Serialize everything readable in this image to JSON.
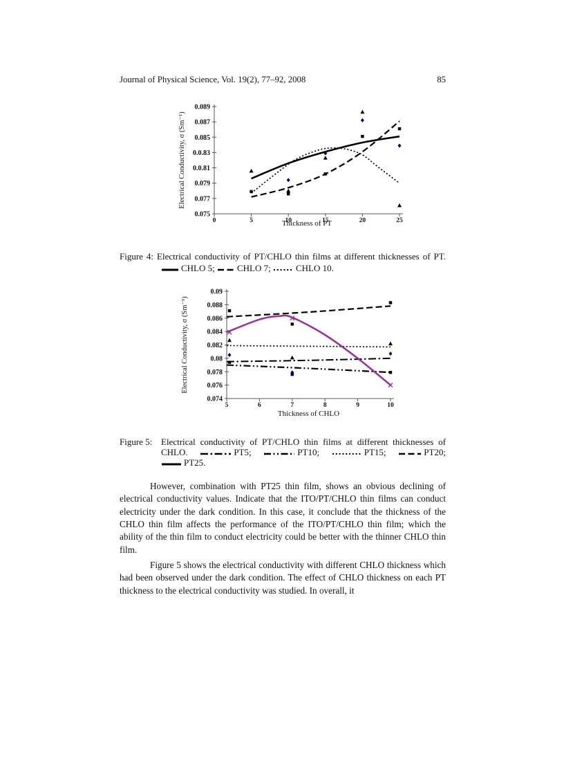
{
  "page": {
    "header": {
      "journal": "Journal of Physical Science, Vol. 19(2), 77–92, 2008",
      "page_number": "85"
    },
    "paragraphs": [
      "However, combination with PT25 thin film, shows an obvious declining of electrical conductivity values. Indicate that the ITO/PT/CHLO thin films can conduct electricity under the dark condition. In this case, it conclude that the thickness of the CHLO thin film affects the performance of the ITO/PT/CHLO thin film; which the ability of the thin film to conduct electricity could be better with the thinner CHLO thin film.",
      "Figure 5 shows the electrical conductivity with different CHLO thickness which had been observed under the dark condition. The effect of CHLO thickness on each PT thickness to the electrical conductivity was studied. In overall, it"
    ]
  },
  "figure4": {
    "label": "Figure 4:",
    "line1": "Electrical conductivity of PT/CHLO thin films at different thicknesses of PT.",
    "legend": [
      {
        "style": "solid",
        "text": "CHLO 5;"
      },
      {
        "style": "dash",
        "text": "CHLO 7;"
      },
      {
        "style": "dot",
        "text": "CHLO 10."
      }
    ]
  },
  "figure5": {
    "label": "Figure 5:",
    "line1": "Electrical conductivity of PT/CHLO thin films at different thicknesses of",
    "pre": "CHLO.",
    "legend": [
      {
        "style": "dashdot",
        "text": "PT5;"
      },
      {
        "style": "dashdotdot",
        "text": "PT10;"
      },
      {
        "style": "dot",
        "text": "PT15;"
      },
      {
        "style": "dash",
        "text": "PT20;"
      },
      {
        "style": "solid",
        "text": "PT25."
      }
    ]
  },
  "colors": {
    "line_black": "#000000",
    "marker_navy": "#000080",
    "pt25_purple": "#993399"
  },
  "chart_data": [
    {
      "type": "line",
      "title": "",
      "xlabel": "Thickness of PT",
      "ylabel": "Electrical Conductivity, σ (Sm⁻¹)",
      "xlim": [
        0,
        25
      ],
      "xticks": [
        "0",
        "5",
        "10",
        "15",
        "20",
        "25"
      ],
      "ylim": [
        0.075,
        0.089
      ],
      "ytick_labels": [
        "0.075",
        "0.077",
        "0.079",
        "0.0.81",
        "0.0.83",
        "0.085",
        "0.087",
        "0.089"
      ],
      "grid": false,
      "fitted_lines": [
        {
          "name": "CHLO 5",
          "style": "solid",
          "color": "#000000",
          "points": [
            [
              5,
              0.0796
            ],
            [
              10,
              0.0816
            ],
            [
              15,
              0.0831
            ],
            [
              20,
              0.0843
            ],
            [
              25,
              0.0851
            ]
          ]
        },
        {
          "name": "CHLO 7",
          "style": "dash",
          "color": "#000000",
          "points": [
            [
              5,
              0.0772
            ],
            [
              10,
              0.0784
            ],
            [
              15,
              0.0802
            ],
            [
              20,
              0.0831
            ],
            [
              25,
              0.0871
            ]
          ]
        },
        {
          "name": "CHLO 10",
          "style": "dot",
          "color": "#000000",
          "points": [
            [
              5,
              0.0777
            ],
            [
              8,
              0.08
            ],
            [
              11,
              0.0821
            ],
            [
              14,
              0.0833
            ],
            [
              16,
              0.0836
            ],
            [
              18,
              0.0834
            ],
            [
              20,
              0.0827
            ],
            [
              22,
              0.0812
            ],
            [
              25,
              0.079
            ]
          ]
        }
      ],
      "markers": [
        {
          "name": "CHLO 5 data",
          "shape": "square",
          "color": "#000000",
          "points": [
            [
              5,
              0.0779
            ],
            [
              10,
              0.0776
            ],
            [
              15,
              0.0802
            ],
            [
              20,
              0.0851
            ],
            [
              25,
              0.0861
            ]
          ]
        },
        {
          "name": "CHLO 7 data",
          "shape": "triangle",
          "color": "#000000",
          "points": [
            [
              5,
              0.0806
            ],
            [
              10,
              0.078
            ],
            [
              15,
              0.0823
            ],
            [
              20,
              0.0883
            ],
            [
              25,
              0.0761
            ]
          ]
        },
        {
          "name": "CHLO 10 data",
          "shape": "diamond",
          "color": "#000080",
          "points": [
            [
              10,
              0.0794
            ],
            [
              15,
              0.0829
            ],
            [
              20,
              0.0872
            ],
            [
              25,
              0.0839
            ]
          ]
        }
      ]
    },
    {
      "type": "line",
      "title": "",
      "xlabel": "Thickness of CHLO",
      "ylabel": "Electrical Conductivity, σ (Sm⁻¹)",
      "xlim": [
        5,
        10
      ],
      "xticks": [
        "5",
        "6",
        "7",
        "8",
        "9",
        "10"
      ],
      "ylim": [
        0.074,
        0.09
      ],
      "ytick_labels": [
        "0.074",
        "0.076",
        "0.078",
        "0.08",
        "0.082",
        "0.084",
        "0.086",
        "0.088",
        "0.09"
      ],
      "grid": false,
      "fitted_lines": [
        {
          "name": "PT5",
          "style": "dashdot",
          "color": "#000000",
          "points": [
            [
              5,
              0.0795
            ],
            [
              7.5,
              0.0797
            ],
            [
              10,
              0.08
            ]
          ]
        },
        {
          "name": "PT10",
          "style": "dashdotdot",
          "color": "#000000",
          "points": [
            [
              5,
              0.079
            ],
            [
              7.5,
              0.0785
            ],
            [
              10,
              0.0779
            ]
          ]
        },
        {
          "name": "PT15",
          "style": "dot",
          "color": "#000000",
          "points": [
            [
              5,
              0.0819
            ],
            [
              7.5,
              0.0818
            ],
            [
              10,
              0.0817
            ]
          ]
        },
        {
          "name": "PT20",
          "style": "dash",
          "color": "#000000",
          "points": [
            [
              5,
              0.0862
            ],
            [
              7.5,
              0.0869
            ],
            [
              10,
              0.0878
            ]
          ]
        },
        {
          "name": "PT25",
          "style": "solid",
          "color": "#993399",
          "points": [
            [
              5,
              0.0839
            ],
            [
              6,
              0.0858
            ],
            [
              6.6,
              0.0863
            ],
            [
              7,
              0.0861
            ],
            [
              8,
              0.0835
            ],
            [
              9,
              0.08
            ],
            [
              10,
              0.076
            ]
          ]
        }
      ],
      "markers": [
        {
          "name": "squares",
          "shape": "square",
          "color": "#000000",
          "points": [
            [
              5,
              0.0871
            ],
            [
              5,
              0.0794
            ],
            [
              7,
              0.0851
            ],
            [
              7,
              0.0776
            ],
            [
              10,
              0.0883
            ],
            [
              10,
              0.0779
            ]
          ]
        },
        {
          "name": "triangles",
          "shape": "triangle",
          "color": "#000000",
          "points": [
            [
              5,
              0.0827
            ],
            [
              7,
              0.0801
            ],
            [
              10,
              0.0822
            ]
          ]
        },
        {
          "name": "diamonds",
          "shape": "diamond",
          "color": "#000080",
          "points": [
            [
              5,
              0.0805
            ],
            [
              7,
              0.0779
            ],
            [
              10,
              0.0807
            ]
          ]
        },
        {
          "name": "x-markers",
          "shape": "x",
          "color": "#993399",
          "points": [
            [
              5,
              0.0839
            ],
            [
              7,
              0.086
            ],
            [
              10,
              0.076
            ]
          ]
        }
      ]
    }
  ]
}
